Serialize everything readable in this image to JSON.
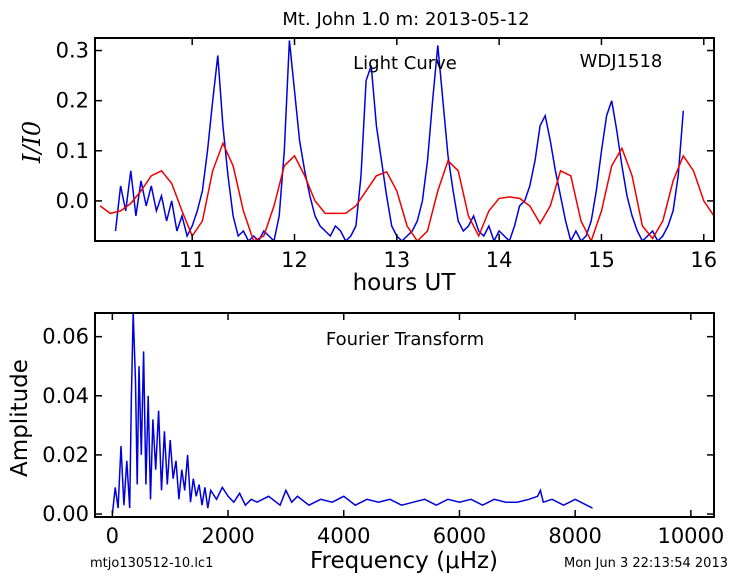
{
  "title": "Mt. John 1.0 m:  2013-05-12",
  "footer_left": "mtjo130512-10.lc1",
  "footer_right": "Mon Jun  3 22:13:54 2013",
  "colors": {
    "observed": "#0000dd",
    "model": "#ee0000",
    "axes": "#000000"
  },
  "chart_data": [
    {
      "type": "line",
      "title": "Light Curve",
      "annotation": "WDJ1518",
      "xlabel": "hours UT",
      "ylabel": "I/I0",
      "xlim": [
        10.05,
        16.1
      ],
      "ylim": [
        -0.08,
        0.325
      ],
      "xticks": [
        11,
        12,
        13,
        14,
        15,
        16
      ],
      "yticks": [
        0.0,
        0.1,
        0.2,
        0.3
      ],
      "xtick_labels": [
        "11",
        "12",
        "13",
        "14",
        "15",
        "16"
      ],
      "ytick_labels": [
        "0.0",
        "0.1",
        "0.2",
        "0.3"
      ],
      "series": [
        {
          "style": "observed",
          "x": [
            10.25,
            10.3,
            10.35,
            10.4,
            10.45,
            10.5,
            10.55,
            10.6,
            10.65,
            10.7,
            10.75,
            10.8,
            10.85,
            10.9,
            10.95,
            11.0,
            11.05,
            11.1,
            11.15,
            11.2,
            11.25,
            11.3,
            11.35,
            11.4,
            11.45,
            11.5,
            11.55,
            11.6,
            11.65,
            11.7,
            11.75,
            11.8,
            11.85,
            11.9,
            11.95,
            12.0,
            12.05,
            12.1,
            12.15,
            12.2,
            12.25,
            12.3,
            12.35,
            12.4,
            12.45,
            12.5,
            12.55,
            12.6,
            12.65,
            12.7,
            12.75,
            12.8,
            12.85,
            12.9,
            12.95,
            13.0,
            13.05,
            13.1,
            13.15,
            13.2,
            13.25,
            13.3,
            13.35,
            13.4,
            13.45,
            13.5,
            13.55,
            13.6,
            13.65,
            13.7,
            13.75,
            13.8,
            13.85,
            13.9,
            13.95,
            14.0,
            14.05,
            14.1,
            14.15,
            14.2,
            14.25,
            14.3,
            14.35,
            14.4,
            14.45,
            14.5,
            14.55,
            14.6,
            14.65,
            14.7,
            14.75,
            14.8,
            14.85,
            14.9,
            14.95,
            15.0,
            15.05,
            15.1,
            15.15,
            15.2,
            15.25,
            15.3,
            15.35,
            15.4,
            15.45,
            15.5,
            15.55,
            15.6,
            15.65,
            15.7,
            15.75,
            15.8
          ],
          "y": [
            -0.06,
            0.03,
            -0.02,
            0.06,
            -0.03,
            0.04,
            -0.01,
            0.03,
            -0.02,
            0.01,
            -0.04,
            0.0,
            -0.06,
            -0.03,
            -0.07,
            -0.05,
            -0.02,
            0.02,
            0.1,
            0.2,
            0.29,
            0.15,
            0.05,
            -0.03,
            -0.07,
            -0.06,
            -0.08,
            -0.07,
            -0.08,
            -0.06,
            -0.07,
            -0.08,
            -0.03,
            0.1,
            0.32,
            0.22,
            0.12,
            0.06,
            0.01,
            -0.03,
            -0.05,
            -0.06,
            -0.07,
            -0.05,
            -0.06,
            -0.08,
            -0.07,
            -0.05,
            0.05,
            0.24,
            0.27,
            0.15,
            0.08,
            0.01,
            -0.05,
            -0.07,
            -0.08,
            -0.07,
            -0.06,
            -0.04,
            0.0,
            0.08,
            0.2,
            0.31,
            0.2,
            0.09,
            0.02,
            -0.04,
            -0.06,
            -0.05,
            -0.03,
            -0.06,
            -0.07,
            -0.05,
            -0.08,
            -0.06,
            -0.07,
            -0.08,
            -0.05,
            -0.01,
            0.0,
            0.03,
            0.08,
            0.15,
            0.17,
            0.12,
            0.06,
            0.01,
            -0.04,
            -0.08,
            -0.06,
            -0.08,
            -0.07,
            -0.04,
            0.02,
            0.1,
            0.17,
            0.2,
            0.14,
            0.07,
            0.01,
            -0.03,
            -0.06,
            -0.08,
            -0.07,
            -0.06,
            -0.08,
            -0.07,
            -0.05,
            -0.02,
            0.05,
            0.18
          ]
        },
        {
          "style": "model",
          "x": [
            10.1,
            10.2,
            10.3,
            10.4,
            10.5,
            10.6,
            10.7,
            10.8,
            10.9,
            11.0,
            11.1,
            11.2,
            11.3,
            11.4,
            11.5,
            11.6,
            11.7,
            11.8,
            11.9,
            12.0,
            12.1,
            12.2,
            12.3,
            12.4,
            12.5,
            12.6,
            12.7,
            12.8,
            12.9,
            13.0,
            13.1,
            13.2,
            13.3,
            13.4,
            13.5,
            13.6,
            13.7,
            13.8,
            13.9,
            14.0,
            14.1,
            14.2,
            14.3,
            14.4,
            14.5,
            14.6,
            14.7,
            14.8,
            14.9,
            15.0,
            15.1,
            15.2,
            15.3,
            15.4,
            15.5,
            15.6,
            15.7,
            15.8,
            15.9,
            16.0,
            16.1
          ],
          "y": [
            -0.01,
            -0.025,
            -0.02,
            -0.005,
            0.02,
            0.05,
            0.06,
            0.035,
            -0.02,
            -0.07,
            -0.04,
            0.06,
            0.115,
            0.07,
            -0.02,
            -0.08,
            -0.07,
            -0.01,
            0.07,
            0.09,
            0.05,
            0.0,
            -0.025,
            -0.025,
            -0.025,
            -0.01,
            0.02,
            0.05,
            0.058,
            0.02,
            -0.05,
            -0.08,
            -0.06,
            0.02,
            0.08,
            0.06,
            -0.03,
            -0.07,
            -0.02,
            0.005,
            0.008,
            0.005,
            -0.01,
            -0.045,
            -0.01,
            0.06,
            0.05,
            -0.04,
            -0.08,
            -0.02,
            0.07,
            0.105,
            0.05,
            -0.05,
            -0.075,
            -0.04,
            0.04,
            0.09,
            0.06,
            0.0,
            -0.03
          ]
        }
      ]
    },
    {
      "type": "line",
      "title": "Fourier Transform",
      "xlabel": "Frequency (μHz)",
      "ylabel": "Amplitude",
      "xlim": [
        -300,
        10400
      ],
      "ylim": [
        -0.001,
        0.068
      ],
      "xticks": [
        0,
        2000,
        4000,
        6000,
        8000,
        10000
      ],
      "yticks": [
        0.0,
        0.02,
        0.04,
        0.06
      ],
      "xtick_labels": [
        "0",
        "2000",
        "4000",
        "6000",
        "8000",
        "10000"
      ],
      "ytick_labels": [
        "0.00",
        "0.02",
        "0.04",
        "0.06"
      ],
      "series": [
        {
          "style": "observed",
          "x": [
            0,
            50,
            100,
            150,
            200,
            250,
            300,
            330,
            360,
            400,
            430,
            460,
            500,
            540,
            580,
            620,
            660,
            700,
            750,
            800,
            850,
            900,
            950,
            1000,
            1050,
            1100,
            1150,
            1200,
            1250,
            1300,
            1350,
            1400,
            1450,
            1500,
            1550,
            1600,
            1650,
            1700,
            1800,
            1900,
            2000,
            2100,
            2200,
            2300,
            2400,
            2500,
            2700,
            2900,
            3000,
            3100,
            3200,
            3400,
            3600,
            3800,
            4000,
            4200,
            4400,
            4600,
            4800,
            5000,
            5200,
            5400,
            5600,
            5800,
            6000,
            6200,
            6400,
            6600,
            6800,
            7000,
            7200,
            7350,
            7400,
            7450,
            7600,
            7800,
            8000,
            8200,
            8300
          ],
          "y": [
            0.0,
            0.009,
            0.002,
            0.023,
            0.003,
            0.018,
            0.002,
            0.04,
            0.068,
            0.045,
            0.01,
            0.05,
            0.02,
            0.055,
            0.01,
            0.04,
            0.005,
            0.032,
            0.015,
            0.035,
            0.008,
            0.028,
            0.01,
            0.025,
            0.012,
            0.018,
            0.005,
            0.015,
            0.008,
            0.02,
            0.004,
            0.012,
            0.006,
            0.01,
            0.003,
            0.009,
            0.002,
            0.008,
            0.005,
            0.009,
            0.006,
            0.004,
            0.007,
            0.003,
            0.005,
            0.004,
            0.006,
            0.003,
            0.008,
            0.004,
            0.006,
            0.003,
            0.005,
            0.004,
            0.006,
            0.003,
            0.005,
            0.004,
            0.005,
            0.003,
            0.004,
            0.005,
            0.003,
            0.005,
            0.004,
            0.005,
            0.003,
            0.005,
            0.004,
            0.004,
            0.005,
            0.006,
            0.008,
            0.004,
            0.005,
            0.003,
            0.005,
            0.003,
            0.002
          ]
        }
      ]
    }
  ]
}
